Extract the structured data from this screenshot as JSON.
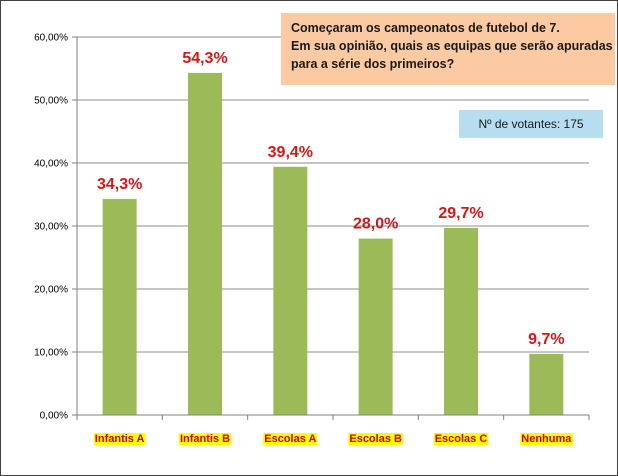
{
  "chart_data": {
    "type": "bar",
    "title_lines": [
      "Começaram os campeonatos de futebol de 7.",
      "Em sua opinião, quais as equipas que serão apuradas",
      "para a série dos primeiros?"
    ],
    "voters_label": "Nº de votantes: 175",
    "categories": [
      "Infantis A",
      "Infantis B",
      "Escolas  A",
      "Escolas  B",
      "Escolas  C",
      "Nenhuma"
    ],
    "values": [
      34.3,
      54.3,
      39.4,
      28.0,
      29.7,
      9.7
    ],
    "data_labels": [
      "34,3%",
      "54,3%",
      "39,4%",
      "28,0%",
      "29,7%",
      "9,7%"
    ],
    "y_ticks": [
      "0,00%",
      "10,00%",
      "20,00%",
      "30,00%",
      "40,00%",
      "50,00%",
      "60,00%"
    ],
    "ylim": [
      0,
      60
    ],
    "xlabel": "",
    "ylabel": "",
    "grid": true,
    "colors": {
      "bar": "#9bbb59",
      "data_label": "#d01818",
      "category_label": "#cc0000",
      "category_highlight": "#ffff00",
      "grid": "#8c8c8c",
      "question_box": "#fbc9a2",
      "voters_box": "#b7def0"
    }
  }
}
